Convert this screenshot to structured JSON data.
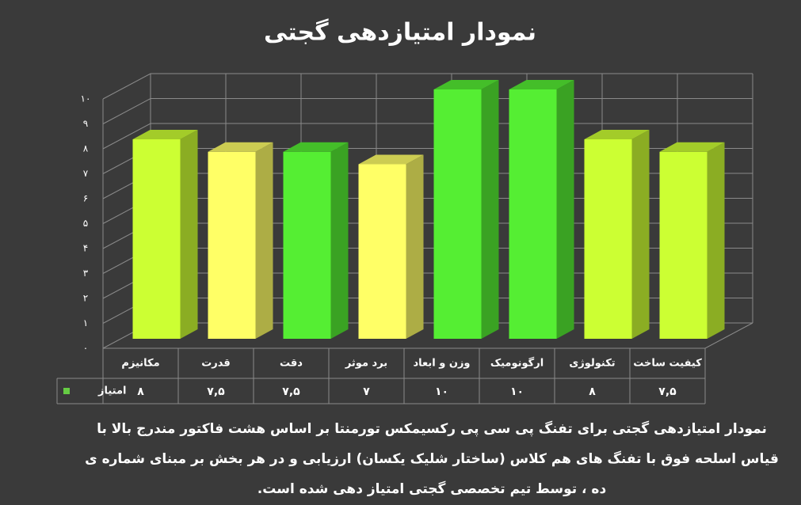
{
  "chart_data": {
    "type": "bar3d",
    "title": "نمودار امتیازدهی گجتی",
    "categories": [
      "مکانیزم",
      "قدرت",
      "دقت",
      "برد موثر",
      "وزن و ابعاد",
      "ارگونومیک",
      "تکنولوژی",
      "کیفیت ساخت"
    ],
    "series": [
      {
        "name": "امتیاز",
        "color": "#66cc44",
        "values": [
          8,
          7.5,
          7.5,
          7,
          10,
          10,
          8,
          7.5
        ],
        "value_labels": [
          "۸",
          "۷,۵",
          "۷,۵",
          "۷",
          "۱۰",
          "۱۰",
          "۸",
          "۷,۵"
        ],
        "colors": [
          "#ccff33",
          "#ffff66",
          "#55ee33",
          "#ffff66",
          "#55ee33",
          "#55ee33",
          "#ccff33",
          "#ccff33"
        ]
      }
    ],
    "ylim": [
      0,
      10
    ],
    "yticks": [
      {
        "value": 0,
        "label": "۰"
      },
      {
        "value": 1,
        "label": "۱"
      },
      {
        "value": 2,
        "label": "۲"
      },
      {
        "value": 3,
        "label": "۳"
      },
      {
        "value": 4,
        "label": "۴"
      },
      {
        "value": 5,
        "label": "۵"
      },
      {
        "value": 6,
        "label": "۶"
      },
      {
        "value": 7,
        "label": "۷"
      },
      {
        "value": 8,
        "label": "۸"
      },
      {
        "value": 9,
        "label": "۹"
      },
      {
        "value": 10,
        "label": "۱۰"
      }
    ],
    "grid": true,
    "caption": [
      "نمودار امتیازدهی گجتی برای تفنگ پی سی پی رکسیمکس تورمنتا بر اساس هشت فاکتور مندرج بالا با",
      "قیاس اسلحه فوق با تفنگ های هم کلاس (ساختار شلیک یکسان) ارزیابی و در هر بخش بر مبنای شماره ی",
      "ده ، توسط تیم تخصصی گجتی امتیاز دهی شده است."
    ]
  }
}
